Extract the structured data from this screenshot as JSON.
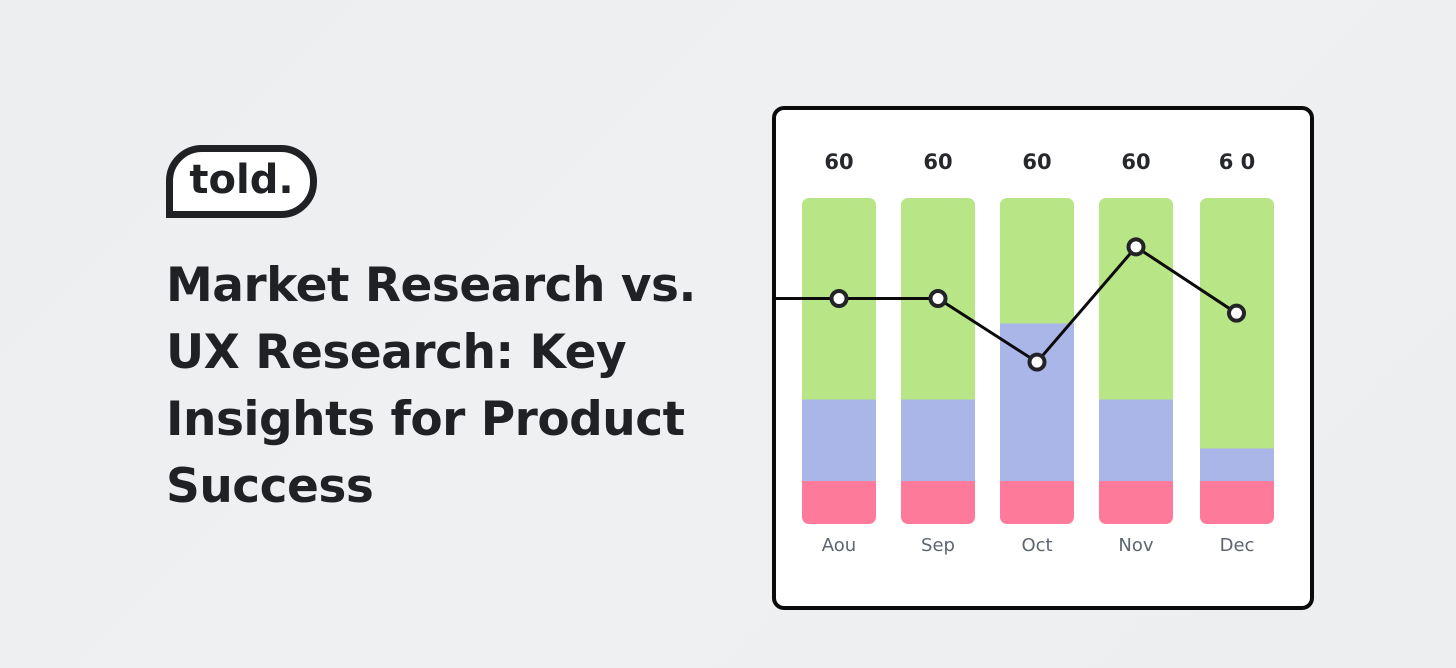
{
  "brand": {
    "logo_text": "told."
  },
  "headline": {
    "lines": [
      "Market Research vs.",
      "UX Research: Key",
      "Insights for Product",
      "Success"
    ]
  },
  "colors": {
    "background": "#edeef0",
    "text": "#1f2124",
    "green": "#b8e686",
    "blue": "#aab6e8",
    "pink": "#fe7a9a",
    "line": "#0b0b0b",
    "month_label": "#5d6570"
  },
  "chart_data": {
    "type": "bar",
    "stacked": true,
    "title": "",
    "xlabel": "",
    "ylabel": "",
    "ylim": [
      0,
      60
    ],
    "grid": false,
    "legend": null,
    "categories": [
      "Aou",
      "Sep",
      "Oct",
      "Nov",
      "Dec"
    ],
    "totals": [
      "60",
      "60",
      "60",
      "60",
      "6 0"
    ],
    "series": [
      {
        "name": "pink (bottom)",
        "color": "#fe7a9a",
        "values": [
          8,
          8,
          8,
          8,
          8
        ]
      },
      {
        "name": "blue (middle)",
        "color": "#aab6e8",
        "values": [
          15,
          15,
          29,
          15,
          6
        ]
      },
      {
        "name": "green (top)",
        "color": "#b8e686",
        "values": [
          37,
          37,
          23,
          37,
          46
        ]
      }
    ],
    "overlay_line": {
      "type": "line",
      "color": "#0b0b0b",
      "values": [
        41.5,
        41.5,
        29.8,
        51,
        38.8
      ],
      "extends_left_to_edge": true
    }
  }
}
